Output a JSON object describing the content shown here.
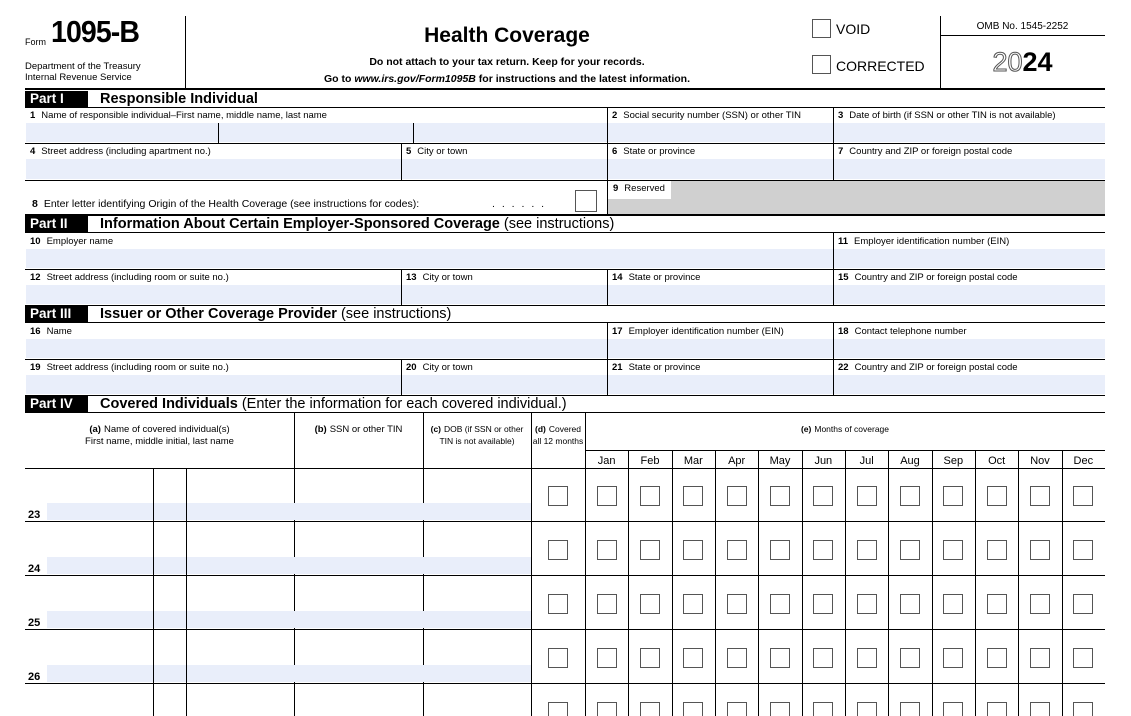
{
  "header": {
    "form_label": "Form",
    "form_number": "1095-B",
    "dept_line1": "Department of the Treasury",
    "dept_line2": "Internal Revenue Service",
    "title": "Health Coverage",
    "instruction1": "Do not attach to your tax return. Keep for your records.",
    "instruction2_prefix": "Go to ",
    "instruction2_link": "www.irs.gov/Form1095B",
    "instruction2_suffix": " for instructions and the latest information.",
    "void": "VOID",
    "corrected": "CORRECTED",
    "omb": "OMB No. 1545-2252",
    "year_outline": "20",
    "year_bold": "24"
  },
  "part1": {
    "label": "Part I",
    "title": "Responsible Individual",
    "fields": [
      {
        "num": "1",
        "label": "Name of responsible individual–First name, middle name, last name"
      },
      {
        "num": "2",
        "label": "Social security number (SSN) or other TIN"
      },
      {
        "num": "3",
        "label": "Date of birth (if SSN or other TIN is not available)"
      },
      {
        "num": "4",
        "label": "Street address (including apartment no.)"
      },
      {
        "num": "5",
        "label": "City or town"
      },
      {
        "num": "6",
        "label": "State or province"
      },
      {
        "num": "7",
        "label": "Country and ZIP or foreign postal code"
      }
    ],
    "origin": {
      "num": "8",
      "label": "Enter letter identifying Origin of the Health Coverage (see instructions for codes):",
      "leader": ". . . . . ."
    },
    "reserved": {
      "num": "9",
      "label": "Reserved"
    }
  },
  "part2": {
    "label": "Part II",
    "title": "Information About Certain Employer-Sponsored Coverage",
    "note": "(see instructions)",
    "fields": [
      {
        "num": "10",
        "label": "Employer name"
      },
      {
        "num": "11",
        "label": "Employer identification number (EIN)"
      },
      {
        "num": "12",
        "label": "Street address (including room or suite no.)"
      },
      {
        "num": "13",
        "label": "City or town"
      },
      {
        "num": "14",
        "label": "State or province"
      },
      {
        "num": "15",
        "label": "Country and ZIP or foreign postal code"
      }
    ]
  },
  "part3": {
    "label": "Part III",
    "title": "Issuer or Other Coverage Provider",
    "note": "(see instructions)",
    "fields": [
      {
        "num": "16",
        "label": "Name"
      },
      {
        "num": "17",
        "label": "Employer identification number (EIN)"
      },
      {
        "num": "18",
        "label": "Contact telephone number"
      },
      {
        "num": "19",
        "label": "Street address (including room or suite no.)"
      },
      {
        "num": "20",
        "label": "City or town"
      },
      {
        "num": "21",
        "label": "State or province"
      },
      {
        "num": "22",
        "label": "Country and ZIP or foreign postal code"
      }
    ]
  },
  "part4": {
    "label": "Part IV",
    "title": "Covered Individuals",
    "note": "(Enter the information for each covered individual.)",
    "columns": [
      {
        "letter": "(a)",
        "lines": [
          "Name of covered individual(s)",
          "First name, middle initial, last name"
        ]
      },
      {
        "letter": "(b)",
        "lines": [
          "SSN or other TIN"
        ]
      },
      {
        "letter": "(c)",
        "lines": [
          "DOB (if SSN or other",
          "TIN is not available)"
        ]
      },
      {
        "letter": "(d)",
        "lines": [
          "Covered",
          "all 12 months"
        ]
      },
      {
        "letter": "(e)",
        "lines": [
          "Months of coverage"
        ]
      }
    ],
    "months": [
      "Jan",
      "Feb",
      "Mar",
      "Apr",
      "May",
      "Jun",
      "Jul",
      "Aug",
      "Sep",
      "Oct",
      "Nov",
      "Dec"
    ],
    "rows": [
      "23",
      "24",
      "25",
      "26"
    ]
  }
}
